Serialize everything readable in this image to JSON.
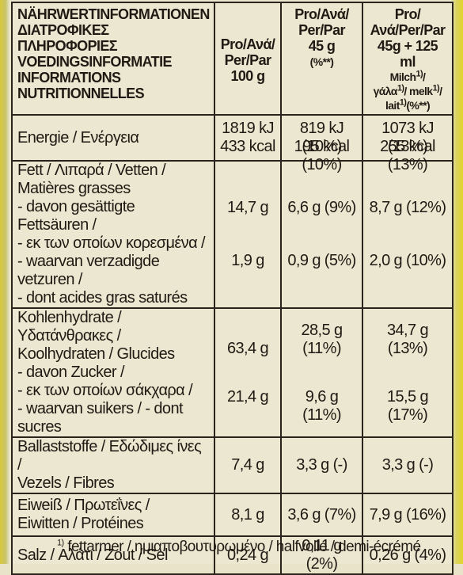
{
  "header": {
    "nutrient_titles": [
      "NÄHRWERTINFORMATIONEN",
      "ΔΙΑΤΡΟΦΙΚΕΣ ΠΛΗΡΟΦΟΡΙΕΣ",
      "VOEDINGSINFORMATIE",
      "INFORMATIONS",
      "NUTRITIONNELLES"
    ],
    "col1": [
      "Pro/Ανά/",
      "Per/Par",
      "100 g"
    ],
    "col2": [
      "Pro/Ανά/",
      "Per/Par",
      "45 g",
      "(%**)"
    ],
    "col3_lines": [
      "Pro/Ανά/Per/Par",
      "45g + 125 ml"
    ],
    "col3_milk": [
      "Milch",
      "1)",
      "/",
      "γάλα",
      "1)",
      "/ melk",
      "1)",
      "/",
      "lait",
      "1)",
      "(%**)"
    ]
  },
  "rows": {
    "energy": {
      "label": "Energie / Ενέργεια",
      "per100": [
        "1819 kJ",
        "433 kcal"
      ],
      "per45": [
        "819 kJ (10%)",
        "195 kcal (10%)"
      ],
      "milk": [
        "1073 kJ (13%)",
        "255 kcal (13%)"
      ]
    },
    "fat": {
      "label": [
        "Fett / Λιπαρά / Vetten /",
        "Matières grasses"
      ],
      "per100": "14,7 g",
      "per45": "6,6 g (9%)",
      "milk": "8,7 g (12%)",
      "sub_label": [
        "- davon gesättigte Fettsäuren /",
        "- εκ των οποίων κορεσμένα /",
        "- waarvan verzadigde vetzuren /",
        "- dont acides gras saturés"
      ],
      "sub_per100": "1,9 g",
      "sub_per45": "0,9 g (5%)",
      "sub_milk": "2,0 g (10%)"
    },
    "carbs": {
      "label": [
        "Kohlenhydrate /",
        "Υδατάνθρακες /",
        "Koolhydraten / Glucides"
      ],
      "per100": "63,4 g",
      "per45": "28,5 g (11%)",
      "milk": "34,7 g (13%)",
      "sub_label": [
        "- davon Zucker /",
        "- εκ των οποίων σάκχαρα /",
        "- waarvan suikers / - dont sucres"
      ],
      "sub_per100": "21,4 g",
      "sub_per45": "9,6 g (11%)",
      "sub_milk": "15,5 g (17%)"
    },
    "fibre": {
      "label": [
        "Ballaststoffe / Εδώδιμες ίνες /",
        "Vezels / Fibres"
      ],
      "per100": "7,4 g",
      "per45": "3,3 g (-)",
      "milk": "3,3 g (-)"
    },
    "protein": {
      "label": [
        "Eiweiß / Πρωτεΐνες /",
        "Eiwitten / Protéines"
      ],
      "per100": "8,1 g",
      "per45": "3,6 g (7%)",
      "milk": "7,9 g (16%)"
    },
    "salt": {
      "label": "Salz / Αλάτι / Zout / Sel",
      "per100": "0,24 g",
      "per45": "0,11 g (2%)",
      "milk": "0,26 g (4%)"
    }
  },
  "footnote": {
    "mark": "1)",
    "text": "fettarmer / ημιαποβουτυρωμένο / halfvolle / demi-écrémé"
  }
}
